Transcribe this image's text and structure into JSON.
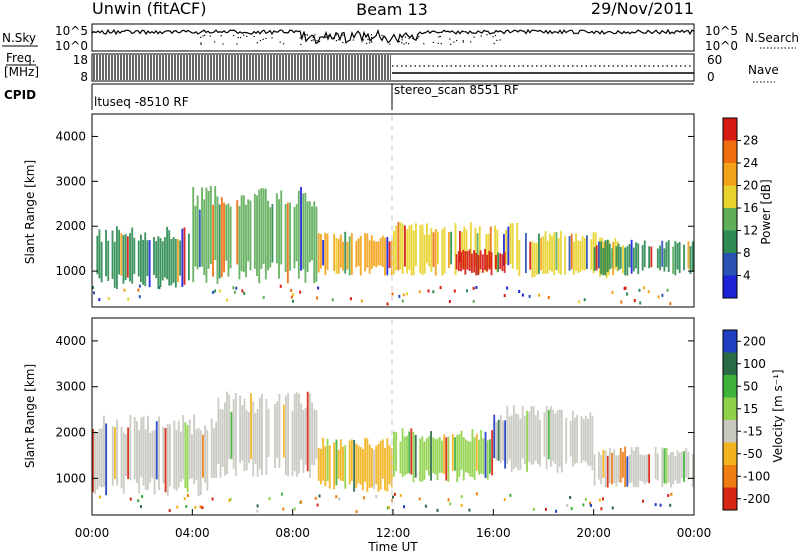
{
  "header": {
    "station": "Unwin (fitACF)",
    "beam": "Beam 13",
    "date": "29/Nov/2011"
  },
  "noise_panel": {
    "left_label": "N.Sky",
    "left_ticks": [
      "10^5",
      "10^0"
    ],
    "right_ticks": [
      "10^5",
      "10^0"
    ],
    "right_label": "N.Search"
  },
  "freq_panel": {
    "left_label": "Freq.",
    "left_unit": "[MHz]",
    "left_ticks": [
      "18",
      "8"
    ],
    "right_ticks": [
      "60",
      "0"
    ],
    "right_label": "Nave"
  },
  "cpid": {
    "label": "CPID",
    "segments": [
      {
        "name": "ltuseq -8510 RF",
        "start_hour": 0
      },
      {
        "name": "stereo_scan 8551 RF",
        "start_hour": 12
      }
    ]
  },
  "power_panel": {
    "ylabel": "Slant Range [km]",
    "yticks": [
      "1000",
      "2000",
      "3000",
      "4000"
    ],
    "colorbar_label": "Power [dB]",
    "colorbar_ticks": [
      "4",
      "8",
      "12",
      "16",
      "20",
      "24",
      "28"
    ]
  },
  "velocity_panel": {
    "ylabel": "Slant Range [km]",
    "yticks": [
      "1000",
      "2000",
      "3000",
      "4000"
    ],
    "colorbar_label": "Velocity [m s⁻¹]",
    "colorbar_ticks": [
      "200",
      "100",
      "50",
      "15",
      "-15",
      "-50",
      "-100",
      "-200"
    ]
  },
  "xaxis": {
    "label": "Time UT",
    "ticks": [
      "00:00",
      "04:00",
      "08:00",
      "12:00",
      "16:00",
      "20:00",
      "00:00"
    ]
  },
  "colors": {
    "power_scale": [
      "#1e23d8",
      "#2a52b4",
      "#2e8c52",
      "#5fae5a",
      "#e8d22c",
      "#f3a31a",
      "#ef6f10",
      "#d61a12"
    ],
    "velocity_scale": [
      "#1e3fc0",
      "#2a6a45",
      "#3fb23a",
      "#8ed24a",
      "#c8c8c0",
      "#f2b31e",
      "#ee7d12",
      "#d42612"
    ]
  },
  "chart_data": [
    {
      "type": "heatmap",
      "title": "",
      "xlabel": "Time UT",
      "ylabel": "Slant Range [km]",
      "xlim": [
        0,
        24
      ],
      "ylim": [
        200,
        4500
      ],
      "colorbar": {
        "label": "Power [dB]",
        "range": [
          0,
          32
        ]
      },
      "regions": [
        {
          "hours": [
            0,
            4
          ],
          "range_km": [
            600,
            2000
          ],
          "value": 10
        },
        {
          "hours": [
            4,
            9
          ],
          "range_km": [
            700,
            2900
          ],
          "value": 14
        },
        {
          "hours": [
            9,
            12
          ],
          "range_km": [
            900,
            1900
          ],
          "value": 20
        },
        {
          "hours": [
            12,
            17
          ],
          "range_km": [
            900,
            2100
          ],
          "value": 18
        },
        {
          "hours": [
            14.5,
            16.5
          ],
          "range_km": [
            900,
            1500
          ],
          "value": 29
        },
        {
          "hours": [
            17,
            21
          ],
          "range_km": [
            800,
            1900
          ],
          "value": 16
        },
        {
          "hours": [
            20,
            24
          ],
          "range_km": [
            900,
            1700
          ],
          "value": 9
        }
      ]
    },
    {
      "type": "heatmap",
      "title": "",
      "xlabel": "Time UT",
      "ylabel": "Slant Range [km]",
      "xlim": [
        0,
        24
      ],
      "ylim": [
        200,
        4500
      ],
      "colorbar": {
        "label": "Velocity [m s⁻¹]",
        "range": [
          -250,
          250
        ]
      },
      "regions": [
        {
          "hours": [
            0,
            5
          ],
          "range_km": [
            600,
            2400
          ],
          "value": 0
        },
        {
          "hours": [
            5,
            9
          ],
          "range_km": [
            1000,
            2900
          ],
          "value": -30
        },
        {
          "hours": [
            9,
            12
          ],
          "range_km": [
            700,
            1900
          ],
          "value": -120
        },
        {
          "hours": [
            12,
            16
          ],
          "range_km": [
            900,
            2100
          ],
          "value": 40
        },
        {
          "hours": [
            16,
            20
          ],
          "range_km": [
            1100,
            2600
          ],
          "value": 0
        },
        {
          "hours": [
            20,
            24
          ],
          "range_km": [
            800,
            1700
          ],
          "value": 0
        }
      ]
    }
  ]
}
